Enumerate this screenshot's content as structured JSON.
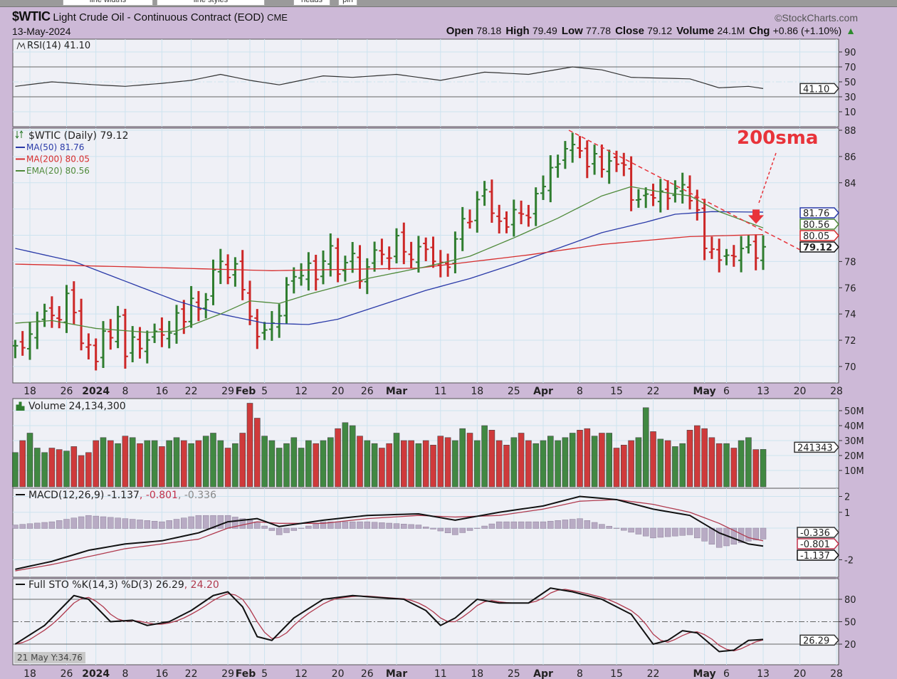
{
  "toolbar": {
    "tabs": [
      "line widths",
      "line styles",
      "heads",
      "pin"
    ]
  },
  "header": {
    "symbol": "$WTIC",
    "name": "Light Crude Oil - Continuous Contract (EOD)",
    "exchange": "CME",
    "date": "13-May-2024",
    "credit": "©StockCharts.com",
    "stats": [
      {
        "label": "Open",
        "value": "78.18"
      },
      {
        "label": "High",
        "value": "79.49"
      },
      {
        "label": "Low",
        "value": "77.78"
      },
      {
        "label": "Close",
        "value": "79.12"
      },
      {
        "label": "Volume",
        "value": "24.1M"
      },
      {
        "label": "Chg",
        "value": "+0.86 (+1.10%)"
      }
    ],
    "change_icon": "up-triangle-icon"
  },
  "readout": "21 May Y:34.76",
  "colors": {
    "up": "#2f7d2f",
    "down": "#cc2727",
    "ma50": "#2a3aa8",
    "ma200": "#d62d2d",
    "ema20": "#4f8a3a",
    "annotation": "#e8333a"
  },
  "chart_data": {
    "type": "ohlc-multi-panel",
    "title": "$WTIC Light Crude Oil - Continuous Contract (EOD)",
    "x_ticks": [
      {
        "label": "18",
        "i": 2
      },
      {
        "label": "26",
        "i": 7
      },
      {
        "label": "2024",
        "i": 11,
        "bold": true
      },
      {
        "label": "8",
        "i": 15
      },
      {
        "label": "16",
        "i": 20
      },
      {
        "label": "22",
        "i": 24
      },
      {
        "label": "29",
        "i": 29
      },
      {
        "label": "Feb",
        "i": 32,
        "bold": true
      },
      {
        "label": "5",
        "i": 34
      },
      {
        "label": "12",
        "i": 39
      },
      {
        "label": "20",
        "i": 44
      },
      {
        "label": "26",
        "i": 48
      },
      {
        "label": "Mar",
        "i": 52,
        "bold": true
      },
      {
        "label": "11",
        "i": 58
      },
      {
        "label": "18",
        "i": 63
      },
      {
        "label": "25",
        "i": 68
      },
      {
        "label": "Apr",
        "i": 72,
        "bold": true
      },
      {
        "label": "8",
        "i": 77
      },
      {
        "label": "15",
        "i": 82
      },
      {
        "label": "22",
        "i": 87
      },
      {
        "label": "May",
        "i": 94,
        "bold": true
      },
      {
        "label": "6",
        "i": 97
      },
      {
        "label": "13",
        "i": 102
      },
      {
        "label": "20",
        "i": 107
      },
      {
        "label": "28",
        "i": 112
      }
    ],
    "price": {
      "legend": "$WTIC (Daily) 79.12",
      "ylim": [
        69,
        88
      ],
      "y_ticks": [
        "70",
        "72",
        "74",
        "76",
        "78",
        "84",
        "86",
        "88"
      ],
      "closes": [
        71.58,
        71.43,
        72.47,
        73.44,
        74.22,
        73.89,
        73.56,
        75.57,
        74.11,
        71.77,
        71.65,
        70.38,
        72.7,
        72.19,
        73.81,
        70.77,
        72.24,
        71.37,
        72.02,
        72.68,
        72.4,
        72.56,
        74.08,
        73.41,
        75.19,
        74.37,
        75.09,
        77.36,
        78.01,
        76.78,
        77.82,
        75.85,
        73.82,
        72.28,
        72.78,
        73.31,
        73.86,
        76.22,
        76.84,
        76.92,
        77.87,
        76.64,
        78.03,
        79.19,
        77.04,
        77.91,
        78.61,
        76.49,
        77.58,
        78.87,
        78.54,
        78.26,
        79.97,
        78.74,
        78.15,
        79.13,
        78.93,
        78.01,
        77.93,
        77.56,
        79.72,
        81.26,
        81.04,
        82.72,
        83.47,
        81.68,
        81.07,
        80.63,
        81.95,
        81.62,
        81.35,
        83.17,
        83.71,
        85.15,
        85.43,
        86.59,
        86.91,
        86.43,
        85.23,
        86.21,
        85.02,
        85.66,
        85.41,
        85.36,
        82.69,
        82.73,
        83.14,
        82.85,
        83.36,
        82.81,
        83.57,
        83.85,
        82.63,
        81.93,
        79.0,
        78.95,
        78.11,
        78.48,
        78.38,
        78.99,
        79.26,
        78.26,
        79.12
      ],
      "overlays": [
        {
          "name": "MA(50)",
          "legend": "MA(50) 81.76",
          "last": "81.76",
          "color": "#2a3aa8",
          "points": [
            [
              0,
              79.0
            ],
            [
              8,
              78.0
            ],
            [
              15,
              76.5
            ],
            [
              22,
              75.0
            ],
            [
              28,
              74.0
            ],
            [
              34,
              73.3
            ],
            [
              40,
              73.2
            ],
            [
              44,
              73.6
            ],
            [
              50,
              74.7
            ],
            [
              56,
              75.8
            ],
            [
              62,
              76.7
            ],
            [
              68,
              77.8
            ],
            [
              74,
              79.0
            ],
            [
              80,
              80.2
            ],
            [
              86,
              81.0
            ],
            [
              90,
              81.6
            ],
            [
              95,
              81.8
            ],
            [
              102,
              81.76
            ]
          ]
        },
        {
          "name": "MA(200)",
          "legend": "MA(200) 80.05",
          "last": "80.05",
          "color": "#d62d2d",
          "points": [
            [
              0,
              77.8
            ],
            [
              15,
              77.6
            ],
            [
              35,
              77.3
            ],
            [
              55,
              77.5
            ],
            [
              70,
              78.5
            ],
            [
              80,
              79.3
            ],
            [
              92,
              79.9
            ],
            [
              102,
              80.05
            ]
          ]
        },
        {
          "name": "EMA(20)",
          "legend": "EMA(20) 80.56",
          "last": "80.56",
          "color": "#4f8a3a",
          "points": [
            [
              0,
              73.3
            ],
            [
              5,
              73.5
            ],
            [
              11,
              72.9
            ],
            [
              18,
              72.6
            ],
            [
              22,
              72.7
            ],
            [
              28,
              74.0
            ],
            [
              32,
              75.0
            ],
            [
              36,
              74.8
            ],
            [
              40,
              75.5
            ],
            [
              48,
              76.7
            ],
            [
              56,
              77.6
            ],
            [
              62,
              78.4
            ],
            [
              68,
              79.8
            ],
            [
              74,
              81.3
            ],
            [
              80,
              83.0
            ],
            [
              84,
              83.7
            ],
            [
              88,
              83.3
            ],
            [
              92,
              83.0
            ],
            [
              96,
              81.8
            ],
            [
              102,
              80.56
            ]
          ]
        }
      ],
      "last_label": "79.12",
      "annotations": {
        "text": "200sma",
        "trendline": [
          [
            75.5,
            88.0
          ],
          [
            107,
            78.9
          ]
        ],
        "arrow_at": [
          102,
          81.2
        ]
      }
    },
    "rsi": {
      "legend": "RSI(14) 41.10",
      "last": "41.10",
      "ylim": [
        0,
        100
      ],
      "y_ticks": [
        "90",
        "70",
        "50",
        "30",
        "10"
      ],
      "points": [
        [
          0,
          44
        ],
        [
          5,
          50
        ],
        [
          11,
          46
        ],
        [
          15,
          44
        ],
        [
          20,
          48
        ],
        [
          24,
          52
        ],
        [
          28,
          60
        ],
        [
          32,
          52
        ],
        [
          36,
          46
        ],
        [
          42,
          58
        ],
        [
          46,
          56
        ],
        [
          52,
          60
        ],
        [
          58,
          52
        ],
        [
          64,
          63
        ],
        [
          70,
          60
        ],
        [
          76,
          70
        ],
        [
          80,
          66
        ],
        [
          84,
          56
        ],
        [
          88,
          55
        ],
        [
          92,
          54
        ],
        [
          96,
          42
        ],
        [
          100,
          44
        ],
        [
          102,
          41.1
        ]
      ]
    },
    "volume": {
      "legend": "Volume 24,134,300",
      "last": "241343",
      "y_ticks": [
        "50M",
        "40M",
        "30M",
        "20M",
        "10M"
      ],
      "values_millions": [
        22,
        30,
        35,
        25,
        22,
        25,
        24,
        23,
        26,
        20,
        22,
        30,
        32,
        30,
        28,
        33,
        32,
        28,
        30,
        30,
        26,
        30,
        32,
        30,
        28,
        30,
        33,
        35,
        30,
        25,
        28,
        35,
        55,
        45,
        33,
        30,
        25,
        28,
        32,
        25,
        30,
        28,
        30,
        32,
        38,
        42,
        40,
        33,
        30,
        28,
        25,
        28,
        35,
        30,
        30,
        28,
        30,
        27,
        33,
        32,
        30,
        38,
        35,
        30,
        40,
        37,
        30,
        27,
        32,
        35,
        30,
        28,
        30,
        33,
        30,
        32,
        35,
        37,
        38,
        33,
        35,
        35,
        25,
        27,
        30,
        32,
        52,
        36,
        31,
        30,
        26,
        28,
        37,
        40,
        38,
        32,
        28,
        28,
        25,
        30,
        32,
        24,
        24.1
      ]
    },
    "macd": {
      "legend_main": "MACD(12,26,9) -1.137",
      "legend_signal": ", -0.801",
      "legend_hist": ", -0.336",
      "labels": [
        "-0.336",
        "-0.801",
        "-1.137"
      ],
      "y_ticks": [
        "2",
        "1",
        "-2"
      ],
      "macd": [
        [
          0,
          -2.6
        ],
        [
          5,
          -2.1
        ],
        [
          10,
          -1.4
        ],
        [
          15,
          -1.0
        ],
        [
          20,
          -0.8
        ],
        [
          25,
          -0.3
        ],
        [
          29,
          0.4
        ],
        [
          33,
          0.6
        ],
        [
          36,
          0.1
        ],
        [
          42,
          0.5
        ],
        [
          48,
          0.8
        ],
        [
          55,
          0.9
        ],
        [
          60,
          0.5
        ],
        [
          66,
          1.0
        ],
        [
          72,
          1.4
        ],
        [
          77,
          2.0
        ],
        [
          82,
          1.8
        ],
        [
          87,
          1.2
        ],
        [
          92,
          0.8
        ],
        [
          96,
          -0.3
        ],
        [
          100,
          -1.0
        ],
        [
          102,
          -1.137
        ]
      ],
      "signal": [
        [
          0,
          -2.7
        ],
        [
          5,
          -2.3
        ],
        [
          10,
          -1.8
        ],
        [
          15,
          -1.3
        ],
        [
          20,
          -1.0
        ],
        [
          25,
          -0.7
        ],
        [
          29,
          0.0
        ],
        [
          33,
          0.4
        ],
        [
          36,
          0.3
        ],
        [
          42,
          0.3
        ],
        [
          48,
          0.6
        ],
        [
          55,
          0.8
        ],
        [
          60,
          0.7
        ],
        [
          66,
          0.8
        ],
        [
          72,
          1.2
        ],
        [
          77,
          1.7
        ],
        [
          82,
          1.8
        ],
        [
          87,
          1.5
        ],
        [
          92,
          1.0
        ],
        [
          96,
          0.3
        ],
        [
          100,
          -0.6
        ],
        [
          102,
          -0.801
        ]
      ]
    },
    "stochastic": {
      "legend_k": "Full STO %K(14,3) %D(3) 26.29",
      "legend_d": ", 24.20",
      "last": "26.29",
      "y_ticks": [
        "80",
        "50",
        "20"
      ],
      "k": [
        [
          0,
          20
        ],
        [
          4,
          45
        ],
        [
          8,
          85
        ],
        [
          10,
          80
        ],
        [
          13,
          50
        ],
        [
          16,
          52
        ],
        [
          18,
          45
        ],
        [
          21,
          50
        ],
        [
          24,
          65
        ],
        [
          27,
          85
        ],
        [
          29,
          90
        ],
        [
          31,
          70
        ],
        [
          33,
          30
        ],
        [
          35,
          25
        ],
        [
          38,
          55
        ],
        [
          42,
          80
        ],
        [
          46,
          85
        ],
        [
          50,
          82
        ],
        [
          53,
          80
        ],
        [
          56,
          65
        ],
        [
          58,
          45
        ],
        [
          60,
          55
        ],
        [
          63,
          80
        ],
        [
          66,
          75
        ],
        [
          70,
          75
        ],
        [
          73,
          95
        ],
        [
          76,
          90
        ],
        [
          80,
          80
        ],
        [
          84,
          60
        ],
        [
          87,
          20
        ],
        [
          89,
          25
        ],
        [
          91,
          38
        ],
        [
          93,
          35
        ],
        [
          96,
          10
        ],
        [
          98,
          12
        ],
        [
          100,
          25
        ],
        [
          102,
          26.29
        ]
      ]
    }
  }
}
